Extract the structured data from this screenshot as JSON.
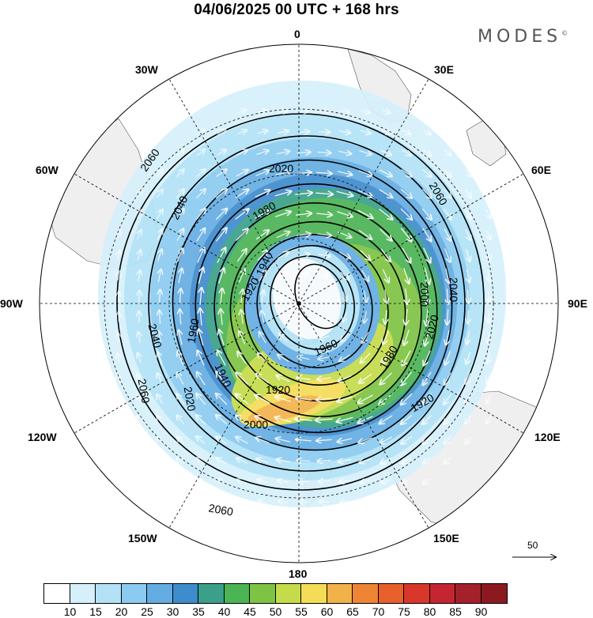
{
  "header": {
    "title": "04/06/2025  00 UTC  + 168 hrs",
    "brand": "MODES"
  },
  "map": {
    "projection": "south-polar-stereographic",
    "ocean_color": "#ffffff",
    "land_color": "#efefef",
    "longitude_labels": {
      "lon_0": "0",
      "lon_30e": "30E",
      "lon_60e": "60E",
      "lon_90e": "90E",
      "lon_120e": "120E",
      "lon_150e": "150E",
      "lon_180": "180",
      "lon_150w": "150W",
      "lon_120w": "120W",
      "lon_90w": "90W",
      "lon_60w": "60W",
      "lon_30w": "30W"
    },
    "contour_labels": [
      "2060",
      "2040",
      "2020",
      "1980",
      "1940",
      "1920",
      "1960",
      "2000",
      "2020",
      "2040",
      "2060",
      "2000",
      "1920",
      "1980",
      "1940",
      "2020",
      "2060",
      "2040",
      "2060",
      "1960",
      "1920"
    ],
    "contour_levels": [
      1880,
      1900,
      1920,
      1940,
      1960,
      1980,
      2000,
      2020,
      2040,
      2060
    ],
    "reference_vector": "50"
  },
  "colorbar": {
    "labels": [
      "10",
      "15",
      "20",
      "25",
      "30",
      "35",
      "40",
      "45",
      "50",
      "55",
      "60",
      "65",
      "70",
      "75",
      "80",
      "85",
      "90"
    ],
    "colors": [
      "#ffffff",
      "#d6f0fb",
      "#b3e2f7",
      "#8ccbf0",
      "#64ade2",
      "#3f8ccd",
      "#3aa089",
      "#4bb455",
      "#7ec444",
      "#c5dc4a",
      "#f5dc57",
      "#f2b24a",
      "#ee8534",
      "#e8602c",
      "#d9372a",
      "#c52530",
      "#a4202b",
      "#8b1a20"
    ]
  }
}
